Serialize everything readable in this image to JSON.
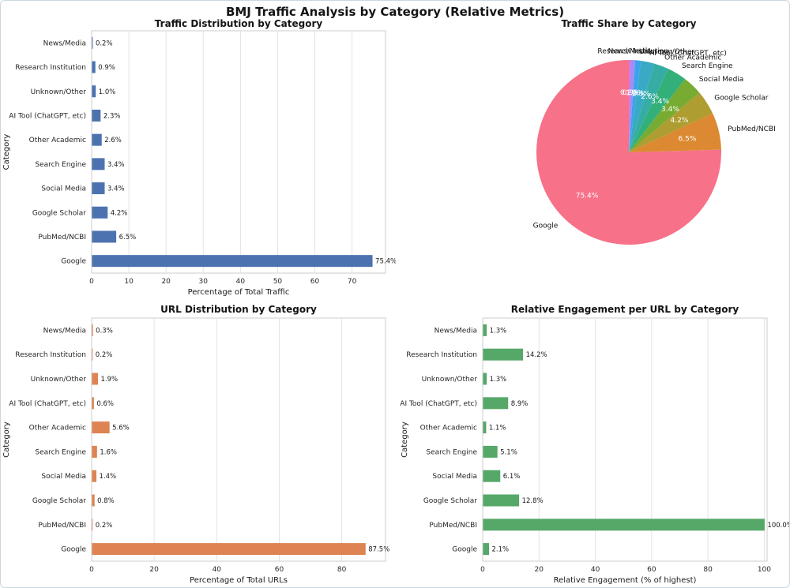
{
  "figure_title": "BMJ Traffic Analysis by Category (Relative Metrics)",
  "chart_data": [
    {
      "type": "bar",
      "orientation": "horizontal",
      "title": "Traffic Distribution by Category",
      "xlabel": "Percentage of Total Traffic",
      "ylabel": "Category",
      "categories": [
        "News/Media",
        "Research Institution",
        "Unknown/Other",
        "AI Tool (ChatGPT, etc)",
        "Other Academic",
        "Search Engine",
        "Social Media",
        "Google Scholar",
        "PubMed/NCBI",
        "Google"
      ],
      "values": [
        0.2,
        0.9,
        1.0,
        2.3,
        2.6,
        3.4,
        3.4,
        4.2,
        6.5,
        75.4
      ],
      "labels": [
        "0.2%",
        "0.9%",
        "1.0%",
        "2.3%",
        "2.6%",
        "3.4%",
        "3.4%",
        "4.2%",
        "6.5%",
        "75.4%"
      ],
      "xticks": [
        0,
        10,
        20,
        30,
        40,
        50,
        60,
        70
      ],
      "xlim": [
        0,
        79
      ],
      "grid": true,
      "color": "#4C72B0"
    },
    {
      "type": "pie",
      "title": "Traffic Share by Category",
      "labels": [
        "Google",
        "PubMed/NCBI",
        "Google Scholar",
        "Social Media",
        "Search Engine",
        "Other Academic",
        "AI Tool (ChatGPT, etc)",
        "Unknown/Other",
        "Research Institution",
        "News/Media"
      ],
      "values": [
        75.4,
        6.5,
        4.2,
        3.4,
        3.4,
        2.6,
        2.3,
        1.0,
        0.9,
        0.2
      ],
      "pct_labels": [
        "75.4%",
        "6.5%",
        "4.2%",
        "3.4%",
        "3.4%",
        "2.6%",
        "2.3%",
        "1.0%",
        "0.9%",
        "0.2%"
      ],
      "colors": [
        "#F77189",
        "#DC8932",
        "#AE9D31",
        "#77AB31",
        "#33B07A",
        "#36ADA4",
        "#39AAC5",
        "#3BA3EC",
        "#A48CF4",
        "#F561DD"
      ],
      "startangle": 90,
      "counterclock": true
    },
    {
      "type": "bar",
      "orientation": "horizontal",
      "title": "URL Distribution by Category",
      "xlabel": "Percentage of Total URLs",
      "ylabel": "Category",
      "categories": [
        "News/Media",
        "Research Institution",
        "Unknown/Other",
        "AI Tool (ChatGPT, etc)",
        "Other Academic",
        "Search Engine",
        "Social Media",
        "Google Scholar",
        "PubMed/NCBI",
        "Google"
      ],
      "values": [
        0.3,
        0.2,
        1.9,
        0.6,
        5.6,
        1.6,
        1.4,
        0.8,
        0.2,
        87.5
      ],
      "labels": [
        "0.3%",
        "0.2%",
        "1.9%",
        "0.6%",
        "5.6%",
        "1.6%",
        "1.4%",
        "0.8%",
        "0.2%",
        "87.5%"
      ],
      "xticks": [
        0,
        20,
        40,
        60,
        80
      ],
      "xlim": [
        0,
        94
      ],
      "grid": true,
      "color": "#DD8452"
    },
    {
      "type": "bar",
      "orientation": "horizontal",
      "title": "Relative Engagement per URL by Category",
      "xlabel": "Relative Engagement (% of highest)",
      "ylabel": "Category",
      "categories": [
        "News/Media",
        "Research Institution",
        "Unknown/Other",
        "AI Tool (ChatGPT, etc)",
        "Other Academic",
        "Search Engine",
        "Social Media",
        "Google Scholar",
        "PubMed/NCBI",
        "Google"
      ],
      "values": [
        1.3,
        14.2,
        1.3,
        8.9,
        1.1,
        5.1,
        6.1,
        12.8,
        100.0,
        2.1
      ],
      "labels": [
        "1.3%",
        "14.2%",
        "1.3%",
        "8.9%",
        "1.1%",
        "5.1%",
        "6.1%",
        "12.8%",
        "100.0%",
        "2.1%"
      ],
      "xticks": [
        0,
        20,
        40,
        60,
        80,
        100
      ],
      "xlim": [
        0,
        101
      ],
      "grid": true,
      "color": "#55A868"
    }
  ]
}
